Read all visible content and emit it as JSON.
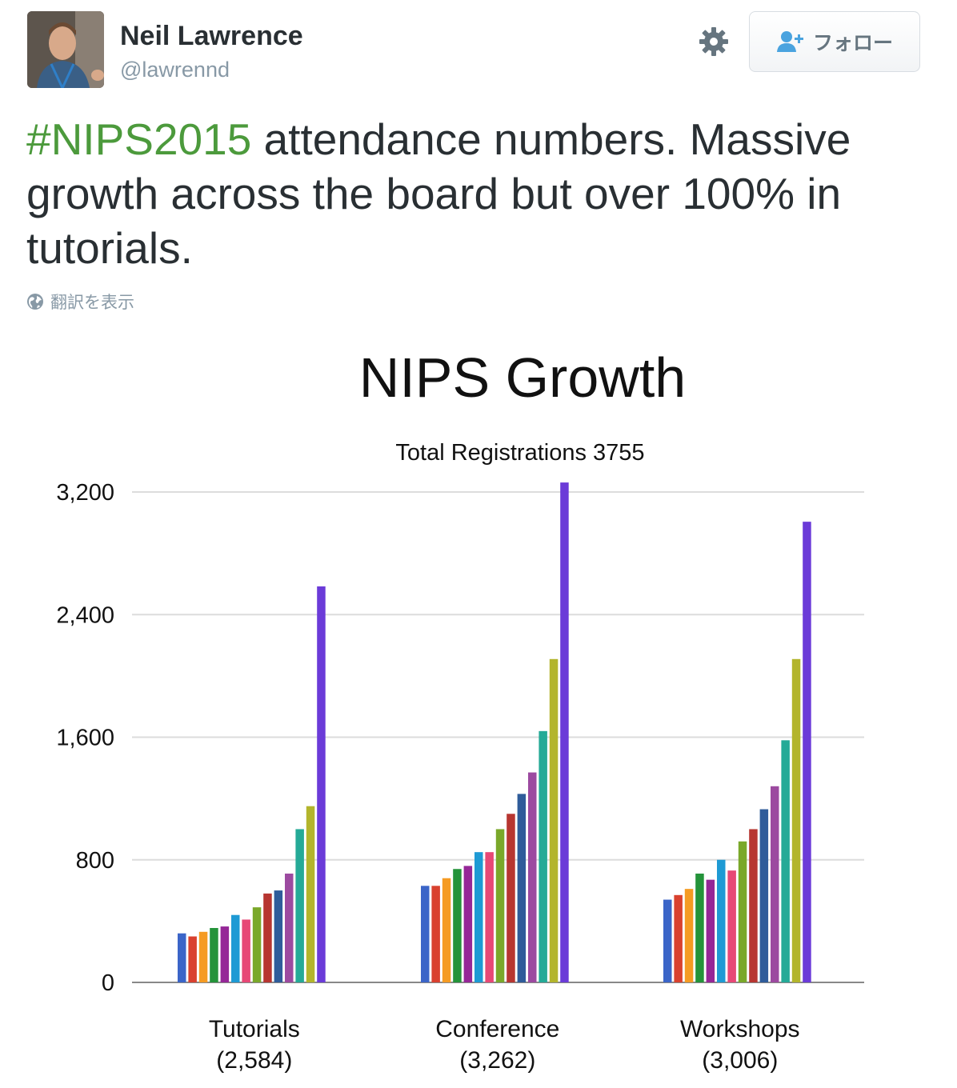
{
  "tweet": {
    "author_name": "Neil Lawrence",
    "author_handle": "@lawrennd",
    "follow_label": "フォロー",
    "hashtag": "#NIPS2015",
    "text_rest": " attendance numbers. Massive growth across the board but over 100% in tutorials.",
    "translate_label": "翻訳を表示"
  },
  "colors": {
    "hashtag": "#4c9a3c",
    "follow_icon": "#4aa3df",
    "bars": [
      "#3b65c8",
      "#d9412f",
      "#f59b23",
      "#24933a",
      "#952797",
      "#1e9ad4",
      "#e74876",
      "#7aa82a",
      "#b73631",
      "#2f5c9a",
      "#9c4aa0",
      "#25aa97",
      "#b3b52c",
      "#6b3bd8"
    ]
  },
  "icons": {
    "gear": "gear-icon",
    "follow": "add-user-icon",
    "translate": "globe-icon"
  },
  "chart_data": {
    "type": "bar",
    "title": "NIPS Growth",
    "subtitle": "Total Registrations  3755",
    "ylim": [
      0,
      3200
    ],
    "yticks": [
      "0",
      "800",
      "1,600",
      "2,400",
      "3,200"
    ],
    "ytick_values": [
      0,
      800,
      1600,
      2400,
      3200
    ],
    "grid": true,
    "categories": [
      "Tutorials",
      "Conference",
      "Workshops"
    ],
    "category_totals": [
      "(2,584)",
      "(3,262)",
      "(3,006)"
    ],
    "series_values": [
      [
        320,
        630,
        540
      ],
      [
        300,
        630,
        570
      ],
      [
        330,
        680,
        610
      ],
      [
        355,
        740,
        710
      ],
      [
        365,
        760,
        670
      ],
      [
        440,
        850,
        800
      ],
      [
        410,
        850,
        730
      ],
      [
        490,
        1000,
        920
      ],
      [
        580,
        1100,
        1000
      ],
      [
        600,
        1230,
        1130
      ],
      [
        710,
        1370,
        1280
      ],
      [
        1000,
        1640,
        1580
      ],
      [
        1150,
        2110,
        2110
      ],
      [
        2584,
        3262,
        3006
      ]
    ]
  }
}
